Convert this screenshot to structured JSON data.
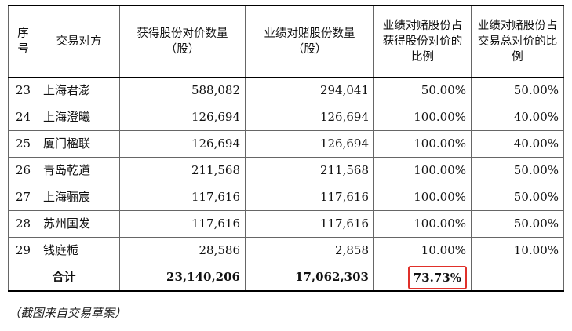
{
  "table": {
    "headers": [
      "序号",
      "交易对方",
      "获得股份对价数量（股）",
      "业绩对赌股份数量（股）",
      "业绩对赌股份占获得股份对价的比例",
      "业绩对赌股份占交易总对价的比例"
    ],
    "rows": [
      {
        "no": "23",
        "name": "上海君澎",
        "shares": "588,082",
        "bet_shares": "294,041",
        "pct_shares": "50.00%",
        "pct_total": "50.00%"
      },
      {
        "no": "24",
        "name": "上海澄曦",
        "shares": "126,694",
        "bet_shares": "126,694",
        "pct_shares": "100.00%",
        "pct_total": "40.00%"
      },
      {
        "no": "25",
        "name": "厦门楹联",
        "shares": "126,694",
        "bet_shares": "126,694",
        "pct_shares": "100.00%",
        "pct_total": "40.00%"
      },
      {
        "no": "26",
        "name": "青岛乾道",
        "shares": "211,568",
        "bet_shares": "211,568",
        "pct_shares": "100.00%",
        "pct_total": "50.00%"
      },
      {
        "no": "27",
        "name": "上海骊宸",
        "shares": "117,616",
        "bet_shares": "117,616",
        "pct_shares": "100.00%",
        "pct_total": "50.00%"
      },
      {
        "no": "28",
        "name": "苏州国发",
        "shares": "117,616",
        "bet_shares": "117,616",
        "pct_shares": "100.00%",
        "pct_total": "50.00%"
      },
      {
        "no": "29",
        "name": "钱庭栀",
        "shares": "28,586",
        "bet_shares": "2,858",
        "pct_shares": "10.00%",
        "pct_total": "10.00%"
      }
    ],
    "total": {
      "label": "合计",
      "shares": "23,140,206",
      "bet_shares": "17,062,303",
      "pct_shares": "73.73%",
      "pct_total": ""
    }
  },
  "caption": "（截图来自交易草案）",
  "colors": {
    "highlight_border": "#e0302a"
  }
}
